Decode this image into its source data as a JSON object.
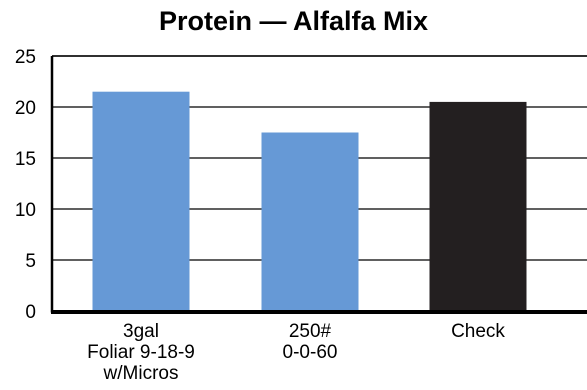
{
  "chart_data": {
    "type": "bar",
    "title": "Protein — Alfalfa Mix",
    "categories": [
      [
        "3gal",
        "Foliar 9-18-9",
        "w/Micros"
      ],
      [
        "250#",
        "0-0-60"
      ],
      [
        "Check"
      ]
    ],
    "values": [
      21.5,
      17.5,
      20.5
    ],
    "bar_colors": [
      "#6699d6",
      "#6699d6",
      "#231f20"
    ],
    "ylim": [
      0,
      25
    ],
    "yticks": [
      "0",
      "5",
      "10",
      "15",
      "20",
      "25"
    ],
    "grid": true,
    "xlabel": "",
    "ylabel": ""
  }
}
